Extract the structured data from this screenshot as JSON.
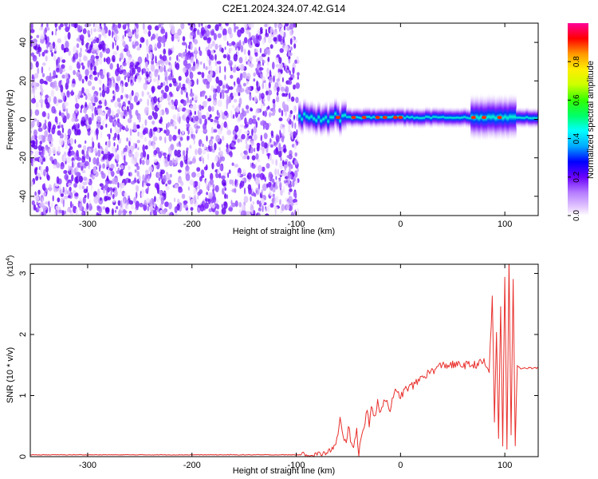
{
  "figure": {
    "title": "C2E1.2024.324.07.42.G14"
  },
  "colors": {
    "snr_line": "#e8302c",
    "background": "#ffffff",
    "colormap": [
      "#ffffff",
      "#e6ccff",
      "#b57cff",
      "#8a2be2",
      "#6a00ff",
      "#0000ff",
      "#00bfff",
      "#00ffff",
      "#00ff66",
      "#66ff00",
      "#ffff00",
      "#ffb000",
      "#ff0000",
      "#ff00aa"
    ]
  },
  "chart_data": [
    {
      "type": "heatmap",
      "name": "spectrogram",
      "title": "",
      "xlabel": "Height of straight line (km)",
      "ylabel": "Frequency (Hz)",
      "xlim": [
        -355,
        132
      ],
      "ylim": [
        -50,
        50
      ],
      "x_ticks": [
        -300,
        -200,
        -100,
        0,
        100
      ],
      "y_ticks": [
        -40,
        -20,
        0,
        20,
        40
      ],
      "colorbar": {
        "label": "Normalized spectral amplitude",
        "range": [
          0.0,
          1.0
        ],
        "ticks": [
          0.0,
          0.2,
          0.4,
          0.6,
          0.8
        ],
        "tick_labels": [
          "0.0",
          "0.2",
          "0.4",
          "0.6",
          "0.8"
        ]
      },
      "regions": [
        {
          "description": "noise",
          "x_range": [
            -355,
            -98
          ],
          "y_range": [
            -50,
            50
          ],
          "amplitude_range": [
            0.0,
            0.3
          ]
        },
        {
          "description": "signal band",
          "x_range": [
            -98,
            132
          ],
          "center_freq_hz": 1,
          "amplitude_range": [
            0.2,
            1.0
          ]
        }
      ]
    },
    {
      "type": "line",
      "name": "snr",
      "title": "",
      "xlabel": "Height of straight line (km)",
      "ylabel": "SNR (10 * v/v)",
      "y_multiplier": "(x10",
      "y_multiplier_exp": "4",
      "xlim": [
        -355,
        132
      ],
      "ylim": [
        0,
        3.15
      ],
      "x_ticks": [
        -300,
        -200,
        -100,
        0,
        100
      ],
      "y_ticks": [
        0,
        1,
        2,
        3
      ],
      "series": [
        {
          "x": [
            -355,
            -300,
            -200,
            -100,
            -95,
            -80,
            -70,
            -62,
            -60,
            -58,
            -55,
            -52,
            -50,
            -48,
            -45,
            -42,
            -40,
            -38,
            -35,
            -32,
            -30,
            -28,
            -25,
            -22,
            -20,
            -15,
            -10,
            -5,
            0,
            5,
            10,
            15,
            20,
            25,
            30,
            35,
            40,
            50,
            60,
            70,
            80,
            85,
            88,
            90,
            92,
            94,
            96,
            98,
            100,
            102,
            104,
            106,
            108,
            110,
            112,
            115,
            120,
            125,
            132
          ],
          "y": [
            0.03,
            0.03,
            0.03,
            0.03,
            0.03,
            0.04,
            0.06,
            0.2,
            0.35,
            0.6,
            0.3,
            0.2,
            0.55,
            0.3,
            0.15,
            0.4,
            0.02,
            0.35,
            0.5,
            0.75,
            0.55,
            0.85,
            0.6,
            0.9,
            0.75,
            0.95,
            0.8,
            1.05,
            1.0,
            1.1,
            1.15,
            1.2,
            1.3,
            1.35,
            1.4,
            1.45,
            1.5,
            1.5,
            1.5,
            1.5,
            1.55,
            1.4,
            2.6,
            0.6,
            2.0,
            0.3,
            2.5,
            0.2,
            2.9,
            0.15,
            3.15,
            0.3,
            2.95,
            0.2,
            1.5,
            1.45,
            1.45,
            1.45,
            1.45
          ]
        }
      ]
    }
  ]
}
